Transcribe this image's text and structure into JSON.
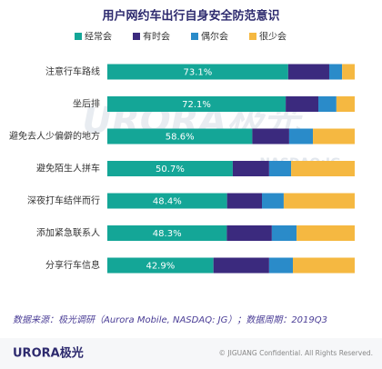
{
  "chart_data": {
    "type": "stacked-bar-horizontal",
    "title": "用户网约车出行自身安全防范意识",
    "categories": [
      "注意行车路线",
      "坐后排",
      "避免去人少偏僻的地方",
      "避免陌生人拼车",
      "深夜打车结伴而行",
      "添加紧急联系人",
      "分享行车信息"
    ],
    "series": [
      {
        "name": "经常会",
        "color": "#14a697",
        "values": [
          73.1,
          72.1,
          58.6,
          50.7,
          48.4,
          48.3,
          42.9
        ],
        "value_labels": [
          "73.1%",
          "72.1%",
          "58.6%",
          "50.7%",
          "48.4%",
          "48.3%",
          "42.9%"
        ]
      },
      {
        "name": "有时会",
        "color": "#3b2a7e",
        "values": [
          16.6,
          13.2,
          14.9,
          14.7,
          14.1,
          18.2,
          22.5
        ]
      },
      {
        "name": "偶尔会",
        "color": "#2a8bc9",
        "values": [
          5.2,
          7.3,
          9.6,
          8.9,
          8.8,
          10.0,
          9.6
        ]
      },
      {
        "name": "很少会",
        "color": "#f5b841",
        "values": [
          5.1,
          7.4,
          16.9,
          25.7,
          28.7,
          23.5,
          25.0
        ]
      }
    ],
    "xlim": [
      0,
      100
    ],
    "legend": "top"
  },
  "watermark": {
    "brand": "URORA极光",
    "ticker": "NASDAQ:JG"
  },
  "source": "数据来源：极光调研（Aurora Mobile, NASDAQ: JG）；数据周期：2019Q3",
  "footer": {
    "logo": "URORA极光",
    "copyright": "© JIGUANG Confidential. All Rights Reserved."
  }
}
